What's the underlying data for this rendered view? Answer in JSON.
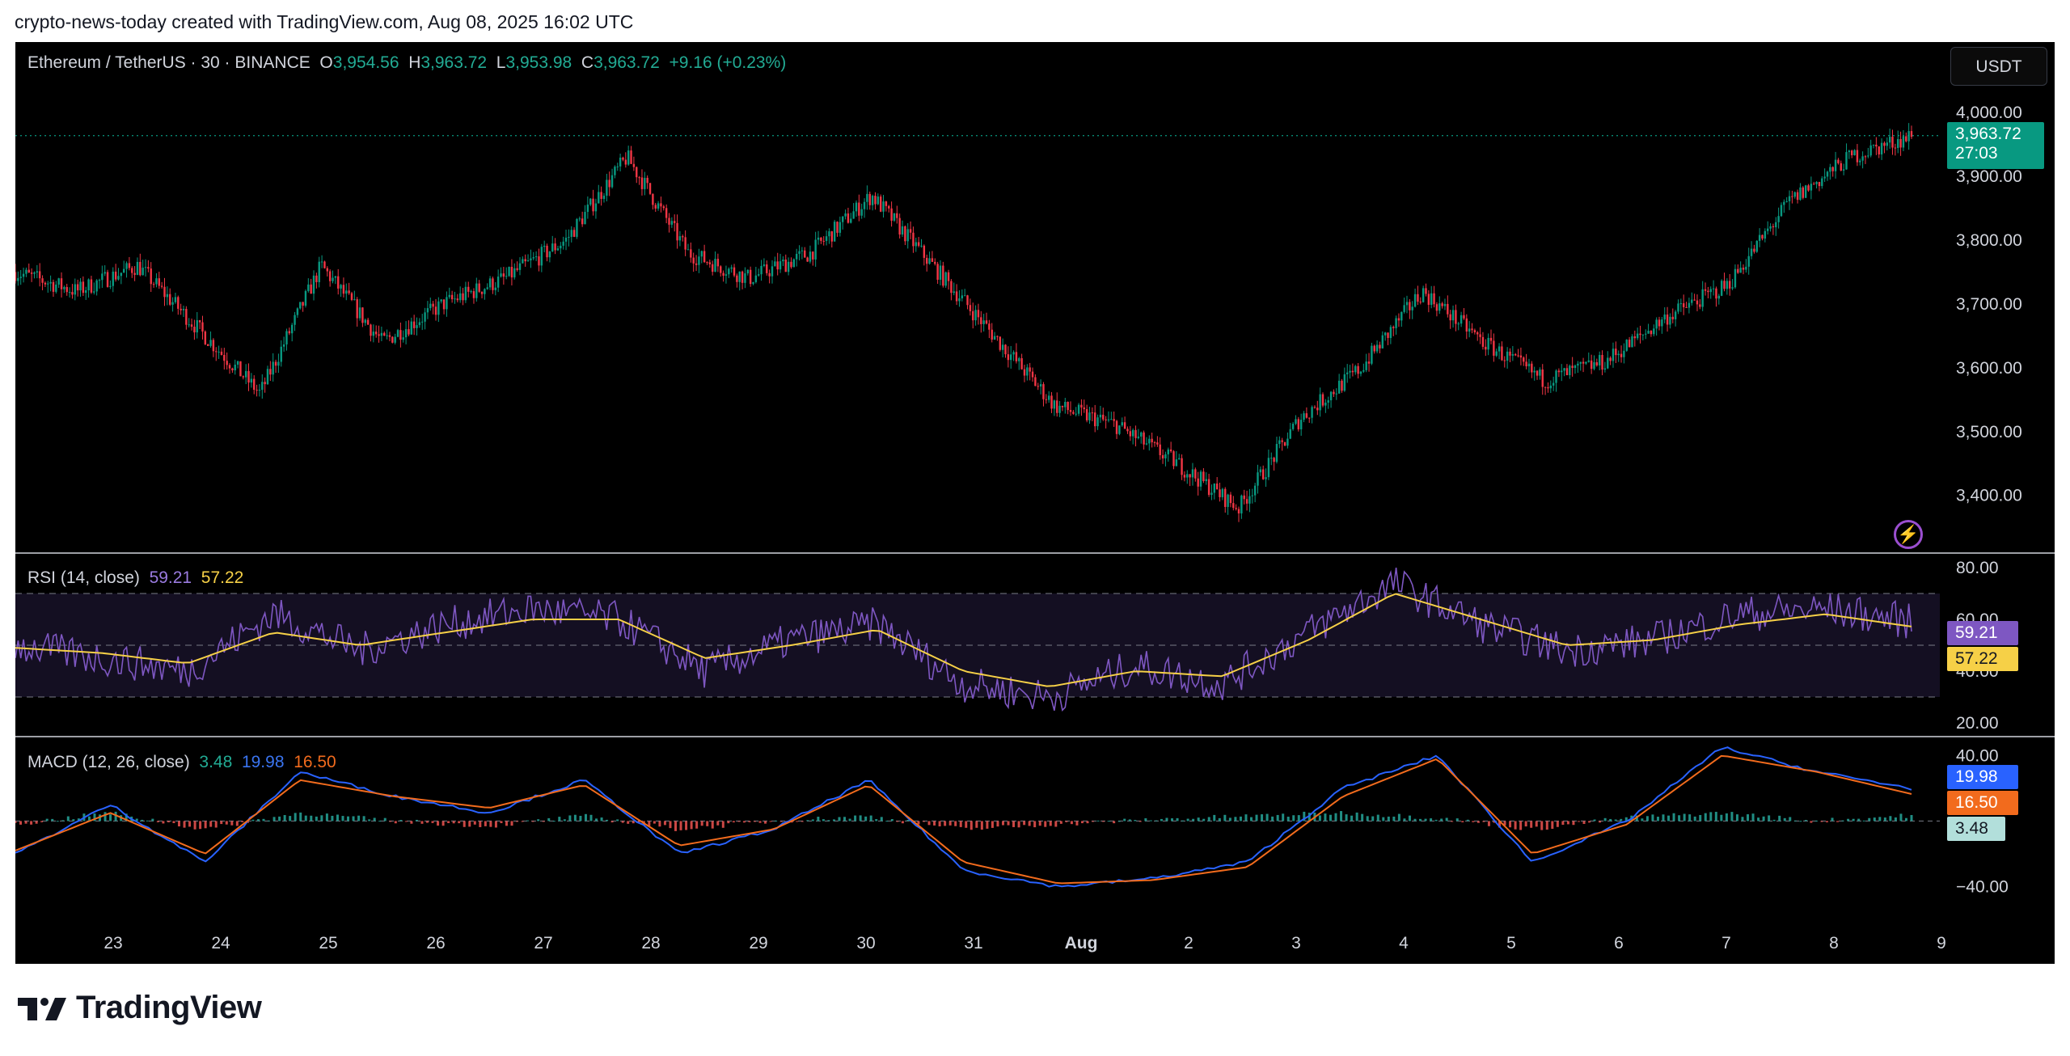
{
  "header": {
    "title": "crypto-news-today created with TradingView.com, Aug 08, 2025 16:02 UTC"
  },
  "symbol": {
    "name": "Ethereum / TetherUS · 30 · BINANCE",
    "open_label": "O",
    "open": "3,954.56",
    "high_label": "H",
    "high": "3,963.72",
    "low_label": "L",
    "low": "3,953.98",
    "close_label": "C",
    "close": "3,963.72",
    "change": "+9.16 (+0.23%)"
  },
  "currency_button": "USDT",
  "price_tag": {
    "price": "3,963.72",
    "countdown": "27:03"
  },
  "rsi": {
    "label": "RSI (14, close)",
    "value": "59.21",
    "ma": "57.22"
  },
  "macd": {
    "label": "MACD (12, 26, close)",
    "hist": "3.48",
    "macd": "19.98",
    "signal": "16.50"
  },
  "brand": {
    "name": "TradingView"
  },
  "colors": {
    "up": "#089981",
    "down": "#f23645",
    "rsi": "#7e57c2",
    "rsi_ma": "#f6d047",
    "macd": "#2962ff",
    "signal": "#f26b1d",
    "accent": "#9b4fd0"
  },
  "icons": {
    "bolt": "lightning-icon",
    "logo": "tradingview-logo-icon"
  },
  "chart_data": [
    {
      "type": "candlestick",
      "title": "Ethereum / TetherUS · 30 · BINANCE",
      "x_ticks": [
        "23",
        "24",
        "25",
        "26",
        "27",
        "28",
        "29",
        "30",
        "31",
        "Aug",
        "2",
        "3",
        "4",
        "5",
        "6",
        "7",
        "8",
        "9"
      ],
      "y_ticks": [
        "4,000.00",
        "3,900.00",
        "3,800.00",
        "3,700.00",
        "3,600.00",
        "3,500.00",
        "3,400.00"
      ],
      "ylim": [
        3335,
        4085
      ],
      "series": [
        {
          "x": [
            "Jul 22",
            "Jul 23",
            "Jul 23 12:00",
            "Jul 24",
            "Jul 24 12:00",
            "Jul 25",
            "Jul 25 12:00",
            "Jul 26",
            "Jul 27",
            "Jul 28",
            "Jul 28 12:00",
            "Jul 29",
            "Jul 30",
            "Jul 31",
            "Jul 31 12:00",
            "Aug 1",
            "Aug 1 12:00",
            "Aug 2",
            "Aug 2 12:00",
            "Aug 3",
            "Aug 3 12:00",
            "Aug 4",
            "Aug 4 12:00",
            "Aug 5",
            "Aug 5 12:00",
            "Aug 6",
            "Aug 6 12:00",
            "Aug 7",
            "Aug 7 12:00",
            "Aug 8",
            "Aug 8 12:00",
            "Aug 8 16:00"
          ],
          "values": [
            3750,
            3720,
            3760,
            3660,
            3560,
            3760,
            3640,
            3700,
            3740,
            3800,
            3930,
            3780,
            3740,
            3780,
            3870,
            3760,
            3650,
            3540,
            3510,
            3450,
            3380,
            3520,
            3600,
            3720,
            3640,
            3580,
            3610,
            3680,
            3730,
            3860,
            3930,
            3963.72
          ]
        }
      ]
    },
    {
      "type": "line",
      "title": "RSI (14, close)",
      "y_ticks": [
        "80.00",
        "60.00",
        "40.00",
        "20.00"
      ],
      "ylim": [
        15,
        85
      ],
      "x": [
        "Jul 22",
        "Jul 23",
        "Jul 24",
        "Jul 25",
        "Jul 26",
        "Jul 27",
        "Jul 28",
        "Jul 28 12:00",
        "Jul 29",
        "Jul 30",
        "Jul 31",
        "Aug 1",
        "Aug 1 12:00",
        "Aug 2",
        "Aug 3",
        "Aug 4",
        "Aug 5",
        "Aug 5 12:00",
        "Aug 6",
        "Aug 7",
        "Aug 7 12:00",
        "Aug 8",
        "Aug 8 16:00"
      ],
      "series": [
        {
          "name": "RSI",
          "values": [
            50,
            45,
            40,
            62,
            48,
            58,
            64,
            60,
            40,
            52,
            58,
            35,
            30,
            42,
            35,
            55,
            74,
            58,
            48,
            52,
            62,
            64,
            59.21
          ]
        },
        {
          "name": "RSI MA",
          "values": [
            49,
            47,
            43,
            55,
            50,
            55,
            60,
            60,
            45,
            50,
            56,
            40,
            34,
            40,
            38,
            52,
            70,
            60,
            50,
            52,
            58,
            62,
            57.22
          ]
        }
      ]
    },
    {
      "type": "line",
      "title": "MACD (12, 26, close)",
      "y_ticks": [
        "40.00",
        "−40.00"
      ],
      "ylim": [
        -55,
        50
      ],
      "x": [
        "Jul 22",
        "Jul 23",
        "Jul 24",
        "Jul 25",
        "Jul 26",
        "Jul 27",
        "Jul 28",
        "Jul 29",
        "Jul 30",
        "Jul 31",
        "Aug 1",
        "Aug 1 12:00",
        "Aug 2",
        "Aug 3",
        "Aug 4",
        "Aug 5",
        "Aug 6",
        "Aug 7",
        "Aug 7 12:00",
        "Aug 8",
        "Aug 8 16:00"
      ],
      "series": [
        {
          "name": "MACD",
          "values": [
            -20,
            10,
            -25,
            30,
            15,
            5,
            25,
            -20,
            -5,
            25,
            -30,
            -40,
            -35,
            -25,
            20,
            40,
            -25,
            0,
            45,
            30,
            19.98
          ]
        },
        {
          "name": "Signal",
          "values": [
            -18,
            5,
            -20,
            25,
            15,
            8,
            22,
            -15,
            -5,
            22,
            -25,
            -38,
            -36,
            -28,
            15,
            38,
            -20,
            -2,
            40,
            30,
            16.5
          ]
        },
        {
          "name": "Histogram",
          "values": [
            -2,
            5,
            -5,
            5,
            0,
            -3,
            3,
            -5,
            0,
            3,
            -5,
            -2,
            1,
            3,
            5,
            2,
            -5,
            2,
            5,
            0,
            3.48
          ]
        }
      ]
    }
  ]
}
